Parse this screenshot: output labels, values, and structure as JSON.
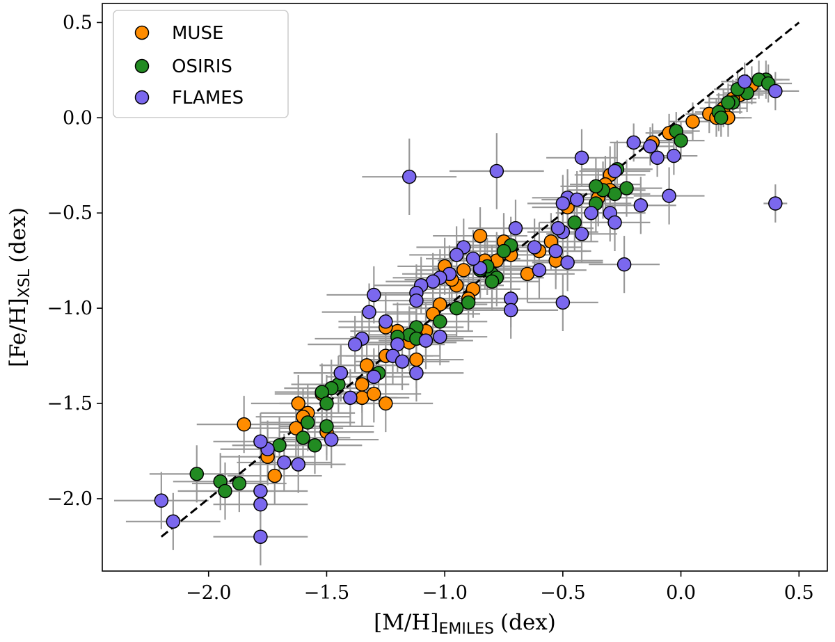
{
  "chart_data": {
    "type": "scatter",
    "title": "",
    "xlabel": {
      "main": "[M/H]",
      "sub": "EMILES",
      "unit": "(dex)"
    },
    "ylabel": {
      "main": "[Fe/H]",
      "sub": "XSL",
      "unit": "(dex)"
    },
    "xlim": [
      -2.45,
      0.62
    ],
    "ylim": [
      -2.38,
      0.6
    ],
    "xticks": [
      -2.0,
      -1.5,
      -1.0,
      -0.5,
      0.0,
      0.5
    ],
    "xtick_labels": [
      "−2.0",
      "−1.5",
      "−1.0",
      "−0.5",
      "0.0",
      "0.5"
    ],
    "yticks": [
      -2.0,
      -1.5,
      -1.0,
      -0.5,
      0.0,
      0.5
    ],
    "ytick_labels": [
      "−2.0",
      "−1.5",
      "−1.0",
      "−0.5",
      "0.0",
      "0.5"
    ],
    "grid": false,
    "legend_position": "top-left",
    "one_to_one_line": {
      "x": [
        -2.2,
        0.5
      ],
      "y": [
        -2.2,
        0.5
      ],
      "style": "dashed",
      "color": "#000000"
    },
    "errorbar_color": "#999999",
    "series": [
      {
        "name": "MUSE",
        "color": "#ff8c00",
        "points": [
          [
            0.3,
            0.17,
            0.1,
            0.1
          ],
          [
            0.25,
            0.12,
            0.1,
            0.1
          ],
          [
            0.22,
            0.1,
            0.1,
            0.1
          ],
          [
            0.18,
            0.05,
            0.1,
            0.1
          ],
          [
            0.12,
            0.02,
            0.1,
            0.1
          ],
          [
            0.15,
            0.0,
            0.1,
            0.1
          ],
          [
            0.2,
            0.0,
            0.1,
            0.1
          ],
          [
            0.05,
            -0.02,
            0.1,
            0.1
          ],
          [
            -0.05,
            -0.08,
            0.1,
            0.1
          ],
          [
            -0.12,
            -0.13,
            0.1,
            0.1
          ],
          [
            -0.3,
            -0.3,
            0.15,
            0.15
          ],
          [
            -0.32,
            -0.35,
            0.15,
            0.15
          ],
          [
            -0.3,
            -0.38,
            0.15,
            0.15
          ],
          [
            -0.35,
            -0.42,
            0.15,
            0.15
          ],
          [
            -0.48,
            -0.47,
            0.15,
            0.15
          ],
          [
            -0.55,
            -0.65,
            0.2,
            0.15
          ],
          [
            -0.53,
            -0.75,
            0.2,
            0.15
          ],
          [
            -0.6,
            -0.7,
            0.2,
            0.15
          ],
          [
            -0.65,
            -0.82,
            0.2,
            0.15
          ],
          [
            -0.72,
            -0.72,
            0.2,
            0.15
          ],
          [
            -0.75,
            -0.65,
            0.2,
            0.15
          ],
          [
            -0.85,
            -0.62,
            0.2,
            0.15
          ],
          [
            -0.78,
            -0.75,
            0.2,
            0.15
          ],
          [
            -0.83,
            -0.75,
            0.2,
            0.15
          ],
          [
            -0.88,
            -0.9,
            0.2,
            0.15
          ],
          [
            -0.9,
            -0.95,
            0.2,
            0.15
          ],
          [
            -0.95,
            -0.88,
            0.2,
            0.15
          ],
          [
            -0.92,
            -0.8,
            0.2,
            0.15
          ],
          [
            -0.97,
            -0.85,
            0.2,
            0.15
          ],
          [
            -1.0,
            -0.78,
            0.2,
            0.15
          ],
          [
            -1.02,
            -0.98,
            0.2,
            0.15
          ],
          [
            -1.05,
            -1.03,
            0.2,
            0.15
          ],
          [
            -1.08,
            -1.12,
            0.2,
            0.15
          ],
          [
            -1.12,
            -1.15,
            0.2,
            0.15
          ],
          [
            -1.15,
            -1.18,
            0.2,
            0.15
          ],
          [
            -1.2,
            -1.12,
            0.2,
            0.15
          ],
          [
            -1.25,
            -1.1,
            0.2,
            0.15
          ],
          [
            -1.25,
            -1.25,
            0.2,
            0.15
          ],
          [
            -1.12,
            -1.27,
            0.2,
            0.15
          ],
          [
            -1.33,
            -1.3,
            0.2,
            0.15
          ],
          [
            -1.35,
            -1.4,
            0.2,
            0.15
          ],
          [
            -1.35,
            -1.47,
            0.2,
            0.15
          ],
          [
            -1.3,
            -1.45,
            0.2,
            0.15
          ],
          [
            -1.25,
            -1.5,
            0.2,
            0.15
          ],
          [
            -1.44,
            -1.34,
            0.2,
            0.15
          ],
          [
            -1.52,
            -1.45,
            0.2,
            0.15
          ],
          [
            -1.5,
            -1.65,
            0.2,
            0.15
          ],
          [
            -1.58,
            -1.55,
            0.2,
            0.15
          ],
          [
            -1.6,
            -1.57,
            0.2,
            0.15
          ],
          [
            -1.62,
            -1.5,
            0.2,
            0.15
          ],
          [
            -1.63,
            -1.63,
            0.2,
            0.15
          ],
          [
            -1.75,
            -1.78,
            0.2,
            0.15
          ],
          [
            -1.72,
            -1.88,
            0.2,
            0.15
          ],
          [
            -1.85,
            -1.61,
            0.2,
            0.15
          ]
        ]
      },
      {
        "name": "OSIRIS",
        "color": "#228b22",
        "points": [
          [
            0.36,
            0.2,
            0.1,
            0.1
          ],
          [
            0.33,
            0.2,
            0.1,
            0.1
          ],
          [
            0.37,
            0.18,
            0.1,
            0.1
          ],
          [
            0.28,
            0.13,
            0.1,
            0.1
          ],
          [
            0.24,
            0.15,
            0.1,
            0.1
          ],
          [
            0.22,
            0.08,
            0.1,
            0.1
          ],
          [
            0.16,
            0.03,
            0.1,
            0.1
          ],
          [
            0.2,
            0.08,
            0.1,
            0.1
          ],
          [
            0.17,
            0.0,
            0.1,
            0.1
          ],
          [
            -0.02,
            -0.07,
            0.1,
            0.1
          ],
          [
            -0.0,
            -0.12,
            0.1,
            0.1
          ],
          [
            -0.27,
            -0.27,
            0.15,
            0.15
          ],
          [
            -0.28,
            -0.4,
            0.15,
            0.15
          ],
          [
            -0.33,
            -0.38,
            0.15,
            0.15
          ],
          [
            -0.36,
            -0.36,
            0.15,
            0.15
          ],
          [
            -0.36,
            -0.45,
            0.15,
            0.15
          ],
          [
            -0.23,
            -0.37,
            0.15,
            0.15
          ],
          [
            -0.45,
            -0.55,
            0.15,
            0.15
          ],
          [
            -0.72,
            -0.67,
            0.2,
            0.15
          ],
          [
            -0.75,
            -0.7,
            0.2,
            0.15
          ],
          [
            -0.8,
            -0.82,
            0.2,
            0.15
          ],
          [
            -0.78,
            -0.84,
            0.2,
            0.15
          ],
          [
            -0.8,
            -0.86,
            0.2,
            0.15
          ],
          [
            -0.82,
            -0.78,
            0.2,
            0.15
          ],
          [
            -0.85,
            -0.8,
            0.2,
            0.15
          ],
          [
            -0.9,
            -0.97,
            0.2,
            0.15
          ],
          [
            -0.95,
            -1.0,
            0.2,
            0.15
          ],
          [
            -1.02,
            -1.07,
            0.2,
            0.15
          ],
          [
            -1.12,
            -1.1,
            0.2,
            0.15
          ],
          [
            -1.15,
            -1.14,
            0.2,
            0.15
          ],
          [
            -1.12,
            -1.16,
            0.2,
            0.15
          ],
          [
            -1.2,
            -1.15,
            0.2,
            0.15
          ],
          [
            -1.28,
            -1.34,
            0.2,
            0.15
          ],
          [
            -1.45,
            -1.4,
            0.2,
            0.15
          ],
          [
            -1.48,
            -1.42,
            0.2,
            0.15
          ],
          [
            -1.52,
            -1.44,
            0.2,
            0.15
          ],
          [
            -1.5,
            -1.5,
            0.2,
            0.15
          ],
          [
            -1.5,
            -1.62,
            0.2,
            0.15
          ],
          [
            -1.55,
            -1.72,
            0.2,
            0.15
          ],
          [
            -1.58,
            -1.6,
            0.2,
            0.15
          ],
          [
            -1.6,
            -1.68,
            0.2,
            0.15
          ],
          [
            -1.7,
            -1.72,
            0.2,
            0.15
          ],
          [
            -1.87,
            -1.92,
            0.2,
            0.15
          ],
          [
            -1.95,
            -1.91,
            0.2,
            0.15
          ],
          [
            -1.93,
            -1.96,
            0.2,
            0.15
          ],
          [
            -2.05,
            -1.87,
            0.2,
            0.15
          ]
        ]
      },
      {
        "name": "FLAMES",
        "color": "#7b68ee",
        "points": [
          [
            0.4,
            0.14,
            0.1,
            0.1
          ],
          [
            0.27,
            0.19,
            0.1,
            0.1
          ],
          [
            0.4,
            -0.45,
            0.05,
            0.1
          ],
          [
            -0.03,
            -0.2,
            0.1,
            0.1
          ],
          [
            -0.1,
            -0.21,
            0.1,
            0.1
          ],
          [
            -0.13,
            -0.15,
            0.1,
            0.1
          ],
          [
            -0.2,
            -0.13,
            0.1,
            0.1
          ],
          [
            -0.28,
            -0.28,
            0.15,
            0.15
          ],
          [
            -0.42,
            -0.21,
            0.15,
            0.15
          ],
          [
            -0.48,
            -0.42,
            0.15,
            0.15
          ],
          [
            -0.5,
            -0.45,
            0.15,
            0.15
          ],
          [
            -0.44,
            -0.43,
            0.15,
            0.15
          ],
          [
            -0.38,
            -0.5,
            0.15,
            0.15
          ],
          [
            -0.3,
            -0.5,
            0.15,
            0.15
          ],
          [
            -0.28,
            -0.55,
            0.15,
            0.15
          ],
          [
            -0.17,
            -0.46,
            0.15,
            0.15
          ],
          [
            -0.05,
            -0.41,
            0.15,
            0.15
          ],
          [
            -0.24,
            -0.77,
            0.15,
            0.15
          ],
          [
            -0.42,
            -0.61,
            0.15,
            0.15
          ],
          [
            -0.5,
            -0.6,
            0.15,
            0.15
          ],
          [
            -0.52,
            -0.58,
            0.15,
            0.15
          ],
          [
            -0.53,
            -0.7,
            0.15,
            0.15
          ],
          [
            -0.5,
            -0.97,
            0.15,
            0.15
          ],
          [
            -0.48,
            -0.76,
            0.15,
            0.15
          ],
          [
            -0.62,
            -0.68,
            0.2,
            0.15
          ],
          [
            -0.6,
            -0.8,
            0.2,
            0.15
          ],
          [
            -0.7,
            -0.58,
            0.2,
            0.15
          ],
          [
            -0.72,
            -0.95,
            0.2,
            0.15
          ],
          [
            -0.72,
            -1.01,
            0.2,
            0.15
          ],
          [
            -0.78,
            -0.28,
            0.2,
            0.2
          ],
          [
            -0.85,
            -0.79,
            0.2,
            0.15
          ],
          [
            -0.88,
            -0.74,
            0.2,
            0.15
          ],
          [
            -0.92,
            -0.68,
            0.2,
            0.15
          ],
          [
            -0.95,
            -0.72,
            0.2,
            0.15
          ],
          [
            -0.98,
            -0.82,
            0.2,
            0.15
          ],
          [
            -1.02,
            -0.84,
            0.2,
            0.15
          ],
          [
            -1.05,
            -0.86,
            0.2,
            0.15
          ],
          [
            -1.1,
            -0.88,
            0.2,
            0.15
          ],
          [
            -1.12,
            -0.92,
            0.2,
            0.15
          ],
          [
            -1.12,
            -0.96,
            0.2,
            0.15
          ],
          [
            -1.15,
            -0.31,
            0.2,
            0.2
          ],
          [
            -1.2,
            -1.19,
            0.2,
            0.15
          ],
          [
            -1.22,
            -1.25,
            0.2,
            0.15
          ],
          [
            -1.18,
            -1.28,
            0.2,
            0.15
          ],
          [
            -1.25,
            -1.07,
            0.2,
            0.15
          ],
          [
            -1.3,
            -0.93,
            0.2,
            0.15
          ],
          [
            -1.32,
            -1.02,
            0.2,
            0.15
          ],
          [
            -1.35,
            -1.16,
            0.2,
            0.15
          ],
          [
            -1.38,
            -1.19,
            0.2,
            0.15
          ],
          [
            -1.12,
            -1.34,
            0.2,
            0.15
          ],
          [
            -1.02,
            -1.15,
            0.2,
            0.15
          ],
          [
            -1.08,
            -1.17,
            0.2,
            0.15
          ],
          [
            -1.3,
            -1.36,
            0.2,
            0.15
          ],
          [
            -1.44,
            -1.34,
            0.2,
            0.15
          ],
          [
            -1.4,
            -1.47,
            0.2,
            0.15
          ],
          [
            -1.48,
            -1.69,
            0.2,
            0.15
          ],
          [
            -1.62,
            -1.82,
            0.2,
            0.15
          ],
          [
            -1.68,
            -1.81,
            0.2,
            0.15
          ],
          [
            -1.75,
            -1.74,
            0.2,
            0.15
          ],
          [
            -1.78,
            -1.7,
            0.2,
            0.15
          ],
          [
            -1.78,
            -1.96,
            0.2,
            0.15
          ],
          [
            -1.78,
            -2.03,
            0.2,
            0.15
          ],
          [
            -1.78,
            -2.2,
            0.2,
            0.15
          ],
          [
            -2.15,
            -2.12,
            0.2,
            0.15
          ],
          [
            -2.2,
            -2.01,
            0.2,
            0.15
          ]
        ]
      }
    ]
  }
}
